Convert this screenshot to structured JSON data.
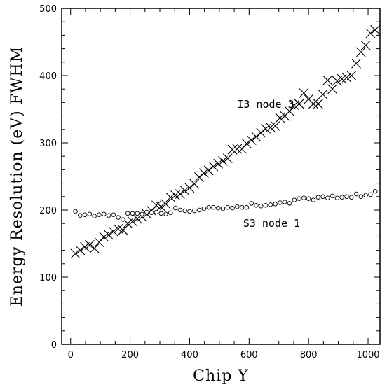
{
  "chart_data": {
    "type": "scatter",
    "xlabel": "Chip Y",
    "ylabel": "Energy Resolution (eV) FWHM",
    "xlim": [
      -30,
      1040
    ],
    "ylim": [
      0,
      500
    ],
    "x_ticks": [
      0,
      200,
      400,
      600,
      800,
      1000
    ],
    "y_ticks": [
      0,
      100,
      200,
      300,
      400,
      500
    ],
    "grid": false,
    "annotations": [
      {
        "text": "I3 node 3",
        "x": 560,
        "y": 352
      },
      {
        "text": "S3 node 1",
        "x": 580,
        "y": 175
      }
    ],
    "series": [
      {
        "name": "I3 node 3",
        "marker": "cross",
        "color": "#000000",
        "x": [
          16,
          32,
          48,
          64,
          80,
          96,
          112,
          128,
          144,
          160,
          176,
          192,
          208,
          224,
          240,
          256,
          272,
          288,
          304,
          320,
          336,
          352,
          368,
          384,
          400,
          416,
          432,
          448,
          464,
          480,
          496,
          512,
          528,
          544,
          560,
          576,
          592,
          608,
          624,
          640,
          656,
          672,
          688,
          704,
          720,
          736,
          752,
          768,
          784,
          800,
          816,
          832,
          848,
          864,
          880,
          896,
          912,
          928,
          944,
          960,
          976,
          992,
          1008,
          1024
        ],
        "y": [
          135,
          140,
          145,
          148,
          143,
          152,
          160,
          163,
          168,
          172,
          170,
          180,
          183,
          187,
          190,
          194,
          199,
          207,
          205,
          209,
          219,
          222,
          224,
          229,
          233,
          239,
          249,
          255,
          259,
          265,
          269,
          273,
          277,
          290,
          291,
          291,
          299,
          304,
          309,
          315,
          321,
          323,
          325,
          337,
          340,
          347,
          356,
          358,
          374,
          365,
          358,
          358,
          372,
          393,
          380,
          392,
          395,
          397,
          400,
          418,
          435,
          445,
          463,
          468
        ]
      },
      {
        "name": "S3 node 1",
        "marker": "circle",
        "color": "#000000",
        "x": [
          16,
          32,
          48,
          64,
          80,
          96,
          112,
          128,
          144,
          160,
          176,
          192,
          208,
          224,
          240,
          256,
          272,
          288,
          304,
          320,
          336,
          352,
          368,
          384,
          400,
          416,
          432,
          448,
          464,
          480,
          496,
          512,
          528,
          544,
          560,
          576,
          592,
          608,
          624,
          640,
          656,
          672,
          688,
          704,
          720,
          736,
          752,
          768,
          784,
          800,
          816,
          832,
          848,
          864,
          880,
          896,
          912,
          928,
          944,
          960,
          976,
          992,
          1008,
          1024
        ],
        "y": [
          198,
          192,
          193,
          194,
          191,
          193,
          194,
          192,
          193,
          189,
          186,
          195,
          195,
          195,
          194,
          197,
          196,
          197,
          195,
          194,
          196,
          203,
          200,
          199,
          198,
          199,
          200,
          202,
          204,
          204,
          203,
          202,
          204,
          203,
          205,
          204,
          204,
          210,
          207,
          206,
          207,
          208,
          209,
          211,
          212,
          210,
          215,
          217,
          218,
          217,
          215,
          219,
          220,
          218,
          221,
          218,
          219,
          220,
          219,
          224,
          220,
          222,
          223,
          228
        ]
      }
    ]
  }
}
